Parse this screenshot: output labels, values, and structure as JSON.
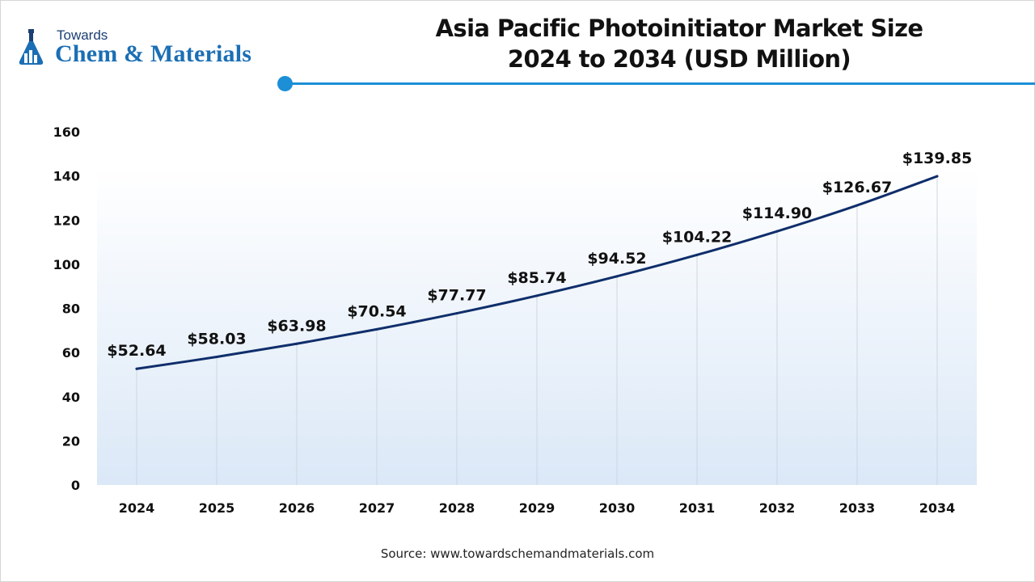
{
  "brand": {
    "small_text": "Towards",
    "big_text": "Chem & Materials"
  },
  "title_lines": [
    "Asia Pacific Photoinitiator Market Size",
    "2024 to 2034 (USD Million)"
  ],
  "source": "Source: www.towardschemandmaterials.com",
  "colors": {
    "line": "#0f2e6b",
    "accent": "#1c8fd6",
    "plot_bg_top": "#ffffff",
    "plot_bg_bottom": "#dbe8f7",
    "gridline": "#cfd6e0"
  },
  "chart_data": {
    "type": "line",
    "title": "Asia Pacific Photoinitiator Market Size 2024 to 2034 (USD Million)",
    "xlabel": "",
    "ylabel": "",
    "categories": [
      "2024",
      "2025",
      "2026",
      "2027",
      "2028",
      "2029",
      "2030",
      "2031",
      "2032",
      "2033",
      "2034"
    ],
    "series": [
      {
        "values": [
          52.64,
          58.03,
          63.98,
          70.54,
          77.77,
          85.74,
          94.52,
          104.22,
          114.9,
          126.67,
          139.85
        ],
        "labels": [
          "$52.64",
          "$58.03",
          "$63.98",
          "$70.54",
          "$77.77",
          "$85.74",
          "$94.52",
          "$104.22",
          "$114.90",
          "$126.67",
          "$139.85"
        ]
      }
    ],
    "ylim": [
      0,
      160
    ],
    "yticks": [
      "0",
      "20",
      "40",
      "60",
      "80",
      "100",
      "120",
      "140",
      "160"
    ],
    "grid": "vertical gridlines at categories",
    "legend": "none"
  }
}
